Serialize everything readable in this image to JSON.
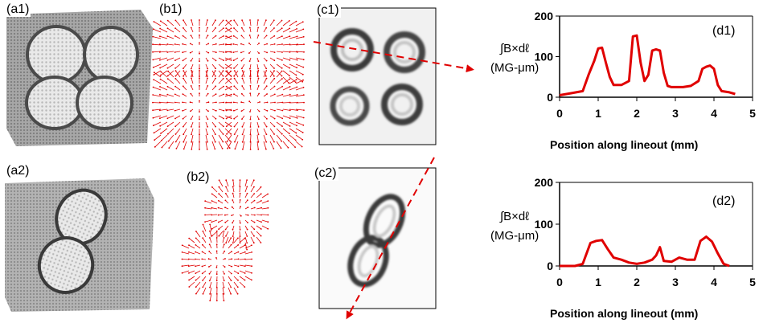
{
  "panels": {
    "a1": "(a1)",
    "a2": "(a2)",
    "b1": "(b1)",
    "b2": "(b2)",
    "c1": "(c1)",
    "c2": "(c2)",
    "d1": "(d1)",
    "d2": "(d2)"
  },
  "colors": {
    "accent": "#e00000"
  },
  "chart_data": [
    {
      "type": "line",
      "panel": "(d1)",
      "ylabel_line1": "∫B×dℓ",
      "ylabel_line2": "(MG-μm)",
      "xlabel": "Position along lineout (mm)",
      "xlim": [
        0,
        5
      ],
      "ylim": [
        0,
        200
      ],
      "xticks": [
        "0",
        "1",
        "2",
        "3",
        "4",
        "5"
      ],
      "yticks": [
        "0",
        "100",
        "200"
      ],
      "x": [
        0,
        0.3,
        0.6,
        0.75,
        0.9,
        1.0,
        1.1,
        1.2,
        1.3,
        1.4,
        1.6,
        1.8,
        1.9,
        2.0,
        2.1,
        2.2,
        2.3,
        2.4,
        2.5,
        2.6,
        2.7,
        2.8,
        2.9,
        3.0,
        3.2,
        3.4,
        3.6,
        3.7,
        3.8,
        3.9,
        4.0,
        4.1,
        4.2,
        4.4,
        4.55
      ],
      "y": [
        5,
        10,
        15,
        55,
        90,
        120,
        122,
        85,
        50,
        30,
        30,
        40,
        150,
        152,
        85,
        40,
        55,
        115,
        118,
        115,
        60,
        28,
        25,
        25,
        25,
        28,
        40,
        70,
        75,
        78,
        70,
        30,
        15,
        12,
        8
      ]
    },
    {
      "type": "line",
      "panel": "(d2)",
      "ylabel_line1": "∫B×dℓ",
      "ylabel_line2": "(MG-μm)",
      "xlabel": "Position along lineout (mm)",
      "xlim": [
        0,
        5
      ],
      "ylim": [
        0,
        200
      ],
      "xticks": [
        "0",
        "1",
        "2",
        "3",
        "4",
        "5"
      ],
      "yticks": [
        "0",
        "100",
        "200"
      ],
      "x": [
        0,
        0.4,
        0.6,
        0.8,
        0.95,
        1.1,
        1.25,
        1.4,
        1.6,
        1.8,
        2.0,
        2.2,
        2.4,
        2.5,
        2.6,
        2.7,
        2.9,
        3.1,
        3.3,
        3.5,
        3.65,
        3.8,
        3.95,
        4.1,
        4.25,
        4.4
      ],
      "y": [
        0,
        0,
        5,
        55,
        60,
        62,
        40,
        20,
        15,
        8,
        5,
        8,
        15,
        25,
        45,
        12,
        10,
        20,
        15,
        15,
        60,
        70,
        58,
        30,
        5,
        0
      ]
    }
  ]
}
